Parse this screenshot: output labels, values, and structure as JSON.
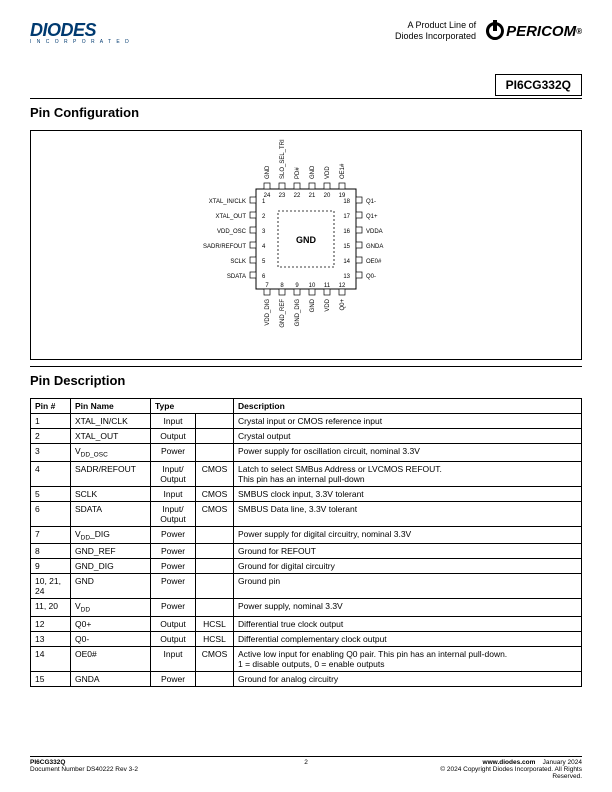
{
  "header": {
    "diodes_logo": "DIODES",
    "diodes_sub": "I N C O R P O R A T E D",
    "product_line_1": "A Product Line of",
    "product_line_2": "Diodes Incorporated",
    "pericom_logo": "PERICOM",
    "part_number": "PI6CG332Q"
  },
  "section1_title": "Pin Configuration",
  "section2_title": "Pin Description",
  "chip": {
    "center_label": "GND",
    "left_pins": [
      {
        "n": "1",
        "l": "XTAL_IN/CLK"
      },
      {
        "n": "2",
        "l": "XTAL_OUT"
      },
      {
        "n": "3",
        "l": "VDD_OSC"
      },
      {
        "n": "4",
        "l": "SADR/REFOUT"
      },
      {
        "n": "5",
        "l": "SCLK"
      },
      {
        "n": "6",
        "l": "SDATA"
      }
    ],
    "right_pins": [
      {
        "n": "18",
        "l": "Q1-"
      },
      {
        "n": "17",
        "l": "Q1+"
      },
      {
        "n": "16",
        "l": "VDDA"
      },
      {
        "n": "15",
        "l": "GNDA"
      },
      {
        "n": "14",
        "l": "OE0#"
      },
      {
        "n": "13",
        "l": "Q0-"
      }
    ],
    "top_pins": [
      {
        "n": "24",
        "l": "GND"
      },
      {
        "n": "23",
        "l": "SLO_SEL_TRI"
      },
      {
        "n": "22",
        "l": "PD#"
      },
      {
        "n": "21",
        "l": "GND"
      },
      {
        "n": "20",
        "l": "VDD"
      },
      {
        "n": "19",
        "l": "OE1#"
      }
    ],
    "bottom_pins": [
      {
        "n": "7",
        "l": "VDD_DIG"
      },
      {
        "n": "8",
        "l": "GND_REF"
      },
      {
        "n": "9",
        "l": "GND_DIG"
      },
      {
        "n": "10",
        "l": "GND"
      },
      {
        "n": "11",
        "l": "VDD"
      },
      {
        "n": "12",
        "l": "Q0+"
      }
    ]
  },
  "table_headers": {
    "pin": "Pin #",
    "name": "Pin Name",
    "type": "Type",
    "description": "Description"
  },
  "rows": [
    {
      "pin": "1",
      "name": "XTAL_IN/CLK",
      "type": "Input",
      "sub": "",
      "desc": "Crystal input or CMOS reference input"
    },
    {
      "pin": "2",
      "name": "XTAL_OUT",
      "type": "Output",
      "sub": "",
      "desc": "Crystal output"
    },
    {
      "pin": "3",
      "name": "V<sub>DD_OSC</sub>",
      "type": "Power",
      "sub": "",
      "desc": "Power supply for oscillation circuit, nominal 3.3V"
    },
    {
      "pin": "4",
      "name": "SADR/REFOUT",
      "type": "Input/\nOutput",
      "sub": "CMOS",
      "desc": "Latch to select SMBus Address or LVCMOS REFOUT.\nThis pin has an internal pull-down"
    },
    {
      "pin": "5",
      "name": "SCLK",
      "type": "Input",
      "sub": "CMOS",
      "desc": "SMBUS clock input, 3.3V tolerant"
    },
    {
      "pin": "6",
      "name": "SDATA",
      "type": "Input/\nOutput",
      "sub": "CMOS",
      "desc": "SMBUS Data line, 3.3V tolerant"
    },
    {
      "pin": "7",
      "name": "V<sub>DD</sub>_DIG",
      "type": "Power",
      "sub": "",
      "desc": "Power supply for digital circuitry, nominal 3.3V"
    },
    {
      "pin": "8",
      "name": "GND_REF",
      "type": "Power",
      "sub": "",
      "desc": "Ground for REFOUT"
    },
    {
      "pin": "9",
      "name": "GND_DIG",
      "type": "Power",
      "sub": "",
      "desc": "Ground for digital circuitry"
    },
    {
      "pin": "10, 21, 24",
      "name": "GND",
      "type": "Power",
      "sub": "",
      "desc": "Ground pin"
    },
    {
      "pin": "11, 20",
      "name": "V<sub>DD</sub>",
      "type": "Power",
      "sub": "",
      "desc": "Power supply, nominal 3.3V"
    },
    {
      "pin": "12",
      "name": "Q0+",
      "type": "Output",
      "sub": "HCSL",
      "desc": "Differential true clock output"
    },
    {
      "pin": "13",
      "name": "Q0-",
      "type": "Output",
      "sub": "HCSL",
      "desc": "Differential complementary clock output"
    },
    {
      "pin": "14",
      "name": "OE0#",
      "type": "Input",
      "sub": "CMOS",
      "desc": "Active low input for enabling Q0 pair. This pin has an internal pull-down.\n1 = disable outputs, 0 = enable outputs"
    },
    {
      "pin": "15",
      "name": "GNDA",
      "type": "Power",
      "sub": "",
      "desc": "Ground for analog circuitry"
    }
  ],
  "footer": {
    "left1": "PI6CG332Q",
    "left2": "Document Number DS40222 Rev 3-2",
    "page": "2",
    "right1": "www.diodes.com",
    "right2": "January 2024",
    "right3": "© 2024 Copyright Diodes Incorporated. All Rights Reserved."
  }
}
